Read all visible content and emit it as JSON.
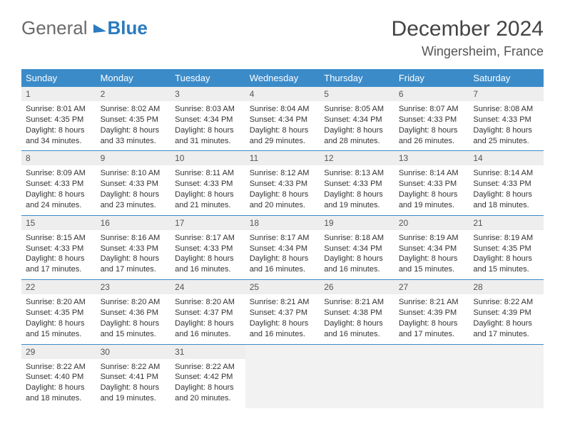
{
  "brand": {
    "part1": "General",
    "part2": "Blue"
  },
  "title": "December 2024",
  "location": "Wingersheim, France",
  "colors": {
    "header_bg": "#3b8bc9",
    "header_text": "#ffffff",
    "daynum_bg": "#eeeeee",
    "row_border": "#3b8bc9",
    "empty_bg": "#f2f2f2",
    "text": "#333333"
  },
  "weekdays": [
    "Sunday",
    "Monday",
    "Tuesday",
    "Wednesday",
    "Thursday",
    "Friday",
    "Saturday"
  ],
  "weeks": [
    [
      {
        "num": "1",
        "sunrise": "Sunrise: 8:01 AM",
        "sunset": "Sunset: 4:35 PM",
        "daylight": "Daylight: 8 hours and 34 minutes."
      },
      {
        "num": "2",
        "sunrise": "Sunrise: 8:02 AM",
        "sunset": "Sunset: 4:35 PM",
        "daylight": "Daylight: 8 hours and 33 minutes."
      },
      {
        "num": "3",
        "sunrise": "Sunrise: 8:03 AM",
        "sunset": "Sunset: 4:34 PM",
        "daylight": "Daylight: 8 hours and 31 minutes."
      },
      {
        "num": "4",
        "sunrise": "Sunrise: 8:04 AM",
        "sunset": "Sunset: 4:34 PM",
        "daylight": "Daylight: 8 hours and 29 minutes."
      },
      {
        "num": "5",
        "sunrise": "Sunrise: 8:05 AM",
        "sunset": "Sunset: 4:34 PM",
        "daylight": "Daylight: 8 hours and 28 minutes."
      },
      {
        "num": "6",
        "sunrise": "Sunrise: 8:07 AM",
        "sunset": "Sunset: 4:33 PM",
        "daylight": "Daylight: 8 hours and 26 minutes."
      },
      {
        "num": "7",
        "sunrise": "Sunrise: 8:08 AM",
        "sunset": "Sunset: 4:33 PM",
        "daylight": "Daylight: 8 hours and 25 minutes."
      }
    ],
    [
      {
        "num": "8",
        "sunrise": "Sunrise: 8:09 AM",
        "sunset": "Sunset: 4:33 PM",
        "daylight": "Daylight: 8 hours and 24 minutes."
      },
      {
        "num": "9",
        "sunrise": "Sunrise: 8:10 AM",
        "sunset": "Sunset: 4:33 PM",
        "daylight": "Daylight: 8 hours and 23 minutes."
      },
      {
        "num": "10",
        "sunrise": "Sunrise: 8:11 AM",
        "sunset": "Sunset: 4:33 PM",
        "daylight": "Daylight: 8 hours and 21 minutes."
      },
      {
        "num": "11",
        "sunrise": "Sunrise: 8:12 AM",
        "sunset": "Sunset: 4:33 PM",
        "daylight": "Daylight: 8 hours and 20 minutes."
      },
      {
        "num": "12",
        "sunrise": "Sunrise: 8:13 AM",
        "sunset": "Sunset: 4:33 PM",
        "daylight": "Daylight: 8 hours and 19 minutes."
      },
      {
        "num": "13",
        "sunrise": "Sunrise: 8:14 AM",
        "sunset": "Sunset: 4:33 PM",
        "daylight": "Daylight: 8 hours and 19 minutes."
      },
      {
        "num": "14",
        "sunrise": "Sunrise: 8:14 AM",
        "sunset": "Sunset: 4:33 PM",
        "daylight": "Daylight: 8 hours and 18 minutes."
      }
    ],
    [
      {
        "num": "15",
        "sunrise": "Sunrise: 8:15 AM",
        "sunset": "Sunset: 4:33 PM",
        "daylight": "Daylight: 8 hours and 17 minutes."
      },
      {
        "num": "16",
        "sunrise": "Sunrise: 8:16 AM",
        "sunset": "Sunset: 4:33 PM",
        "daylight": "Daylight: 8 hours and 17 minutes."
      },
      {
        "num": "17",
        "sunrise": "Sunrise: 8:17 AM",
        "sunset": "Sunset: 4:33 PM",
        "daylight": "Daylight: 8 hours and 16 minutes."
      },
      {
        "num": "18",
        "sunrise": "Sunrise: 8:17 AM",
        "sunset": "Sunset: 4:34 PM",
        "daylight": "Daylight: 8 hours and 16 minutes."
      },
      {
        "num": "19",
        "sunrise": "Sunrise: 8:18 AM",
        "sunset": "Sunset: 4:34 PM",
        "daylight": "Daylight: 8 hours and 16 minutes."
      },
      {
        "num": "20",
        "sunrise": "Sunrise: 8:19 AM",
        "sunset": "Sunset: 4:34 PM",
        "daylight": "Daylight: 8 hours and 15 minutes."
      },
      {
        "num": "21",
        "sunrise": "Sunrise: 8:19 AM",
        "sunset": "Sunset: 4:35 PM",
        "daylight": "Daylight: 8 hours and 15 minutes."
      }
    ],
    [
      {
        "num": "22",
        "sunrise": "Sunrise: 8:20 AM",
        "sunset": "Sunset: 4:35 PM",
        "daylight": "Daylight: 8 hours and 15 minutes."
      },
      {
        "num": "23",
        "sunrise": "Sunrise: 8:20 AM",
        "sunset": "Sunset: 4:36 PM",
        "daylight": "Daylight: 8 hours and 15 minutes."
      },
      {
        "num": "24",
        "sunrise": "Sunrise: 8:20 AM",
        "sunset": "Sunset: 4:37 PM",
        "daylight": "Daylight: 8 hours and 16 minutes."
      },
      {
        "num": "25",
        "sunrise": "Sunrise: 8:21 AM",
        "sunset": "Sunset: 4:37 PM",
        "daylight": "Daylight: 8 hours and 16 minutes."
      },
      {
        "num": "26",
        "sunrise": "Sunrise: 8:21 AM",
        "sunset": "Sunset: 4:38 PM",
        "daylight": "Daylight: 8 hours and 16 minutes."
      },
      {
        "num": "27",
        "sunrise": "Sunrise: 8:21 AM",
        "sunset": "Sunset: 4:39 PM",
        "daylight": "Daylight: 8 hours and 17 minutes."
      },
      {
        "num": "28",
        "sunrise": "Sunrise: 8:22 AM",
        "sunset": "Sunset: 4:39 PM",
        "daylight": "Daylight: 8 hours and 17 minutes."
      }
    ],
    [
      {
        "num": "29",
        "sunrise": "Sunrise: 8:22 AM",
        "sunset": "Sunset: 4:40 PM",
        "daylight": "Daylight: 8 hours and 18 minutes."
      },
      {
        "num": "30",
        "sunrise": "Sunrise: 8:22 AM",
        "sunset": "Sunset: 4:41 PM",
        "daylight": "Daylight: 8 hours and 19 minutes."
      },
      {
        "num": "31",
        "sunrise": "Sunrise: 8:22 AM",
        "sunset": "Sunset: 4:42 PM",
        "daylight": "Daylight: 8 hours and 20 minutes."
      },
      {
        "empty": true
      },
      {
        "empty": true
      },
      {
        "empty": true
      },
      {
        "empty": true
      }
    ]
  ]
}
